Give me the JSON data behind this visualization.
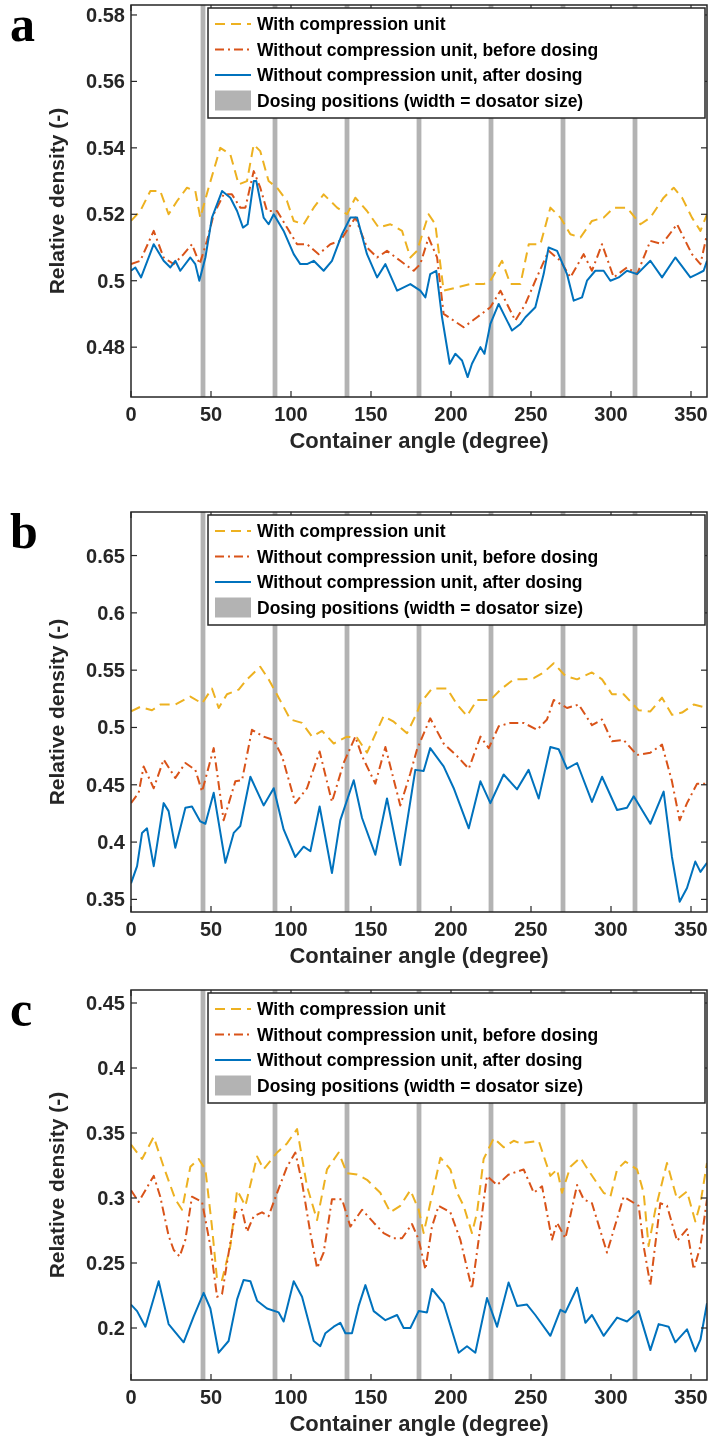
{
  "chart_data": [
    {
      "type": "line",
      "title": "a",
      "xlabel": "Container angle (degree)",
      "ylabel": "Relative density (-)",
      "xlim": [
        0,
        360
      ],
      "ylim": [
        0.465,
        0.583
      ],
      "xticks": [
        0,
        50,
        100,
        150,
        200,
        250,
        300,
        350
      ],
      "yticks": [
        0.48,
        0.5,
        0.52,
        0.54,
        0.56,
        0.58
      ],
      "legend": "top right",
      "grid": false,
      "bands": [
        {
          "axis": "x",
          "from": 43.5,
          "to": 46.5,
          "label": "Dosing positions (width = dosator size)",
          "color": "#b3b3b3"
        },
        {
          "axis": "x",
          "from": 88.5,
          "to": 91.5,
          "color": "#b3b3b3"
        },
        {
          "axis": "x",
          "from": 133.5,
          "to": 136.5,
          "color": "#b3b3b3"
        },
        {
          "axis": "x",
          "from": 178.5,
          "to": 181.5,
          "color": "#b3b3b3"
        },
        {
          "axis": "x",
          "from": 223.5,
          "to": 226.5,
          "color": "#b3b3b3"
        },
        {
          "axis": "x",
          "from": 268.5,
          "to": 271.5,
          "color": "#b3b3b3"
        },
        {
          "axis": "x",
          "from": 313.5,
          "to": 316.5,
          "color": "#b3b3b3"
        }
      ],
      "series": [
        {
          "name": "With compression unit",
          "color": "#edb120",
          "line_style": "dashed",
          "x": [
            0,
            5.8,
            12.1,
            18.3,
            23.5,
            28.8,
            35,
            40.2,
            43.3,
            48.5,
            55.8,
            62.1,
            67.3,
            72.5,
            76.7,
            80.8,
            86,
            91.3,
            97.5,
            101.7,
            107.9,
            114.2,
            120.4,
            128.8,
            135,
            140.2,
            147.5,
            154.8,
            162.1,
            169.4,
            174.6,
            178.8,
            186,
            190.2,
            195.4,
            203.8,
            212.1,
            220.4,
            224.6,
            231.9,
            237.1,
            243.4,
            248.6,
            255.9,
            262.1,
            268.4,
            274.6,
            280.9,
            288.1,
            295.4,
            301.7,
            310,
            318.4,
            324.6,
            332.9,
            339.2,
            344.4,
            350.6,
            355.9,
            360
          ],
          "values": [
            0.518,
            0.521,
            0.527,
            0.527,
            0.52,
            0.524,
            0.528,
            0.527,
            0.519,
            0.528,
            0.54,
            0.538,
            0.529,
            0.53,
            0.541,
            0.539,
            0.53,
            0.528,
            0.524,
            0.518,
            0.517,
            0.522,
            0.526,
            0.522,
            0.52,
            0.525,
            0.521,
            0.516,
            0.517,
            0.515,
            0.507,
            0.509,
            0.52,
            0.517,
            0.497,
            0.498,
            0.499,
            0.499,
            0.5,
            0.506,
            0.499,
            0.499,
            0.511,
            0.511,
            0.522,
            0.519,
            0.514,
            0.513,
            0.518,
            0.519,
            0.522,
            0.522,
            0.517,
            0.519,
            0.525,
            0.528,
            0.525,
            0.519,
            0.515,
            0.52
          ]
        },
        {
          "name": "Without compression unit, before dosing",
          "color": "#d95319",
          "line_style": "dashdot",
          "x": [
            0,
            5.8,
            14.2,
            20.4,
            26.7,
            32.9,
            38.1,
            42.9,
            47.5,
            51.7,
            57.9,
            63.1,
            68.3,
            71.5,
            76.7,
            80.8,
            85,
            91.3,
            97.5,
            103.8,
            110,
            117.3,
            124.6,
            130.8,
            140.2,
            147.5,
            153.8,
            160,
            168.3,
            176.7,
            180.8,
            186,
            191.3,
            195.4,
            201.7,
            207.9,
            216.3,
            224.6,
            230.9,
            235,
            240.2,
            246.5,
            252.7,
            261,
            268.4,
            274.6,
            282.9,
            288.1,
            294.4,
            301.7,
            310,
            316.3,
            324.6,
            331.9,
            341.3,
            350.6,
            355.9,
            360
          ],
          "values": [
            0.505,
            0.506,
            0.515,
            0.507,
            0.505,
            0.508,
            0.511,
            0.505,
            0.512,
            0.52,
            0.526,
            0.526,
            0.522,
            0.522,
            0.533,
            0.528,
            0.521,
            0.521,
            0.516,
            0.511,
            0.511,
            0.508,
            0.511,
            0.512,
            0.519,
            0.51,
            0.507,
            0.509,
            0.506,
            0.503,
            0.505,
            0.513,
            0.507,
            0.49,
            0.488,
            0.486,
            0.489,
            0.492,
            0.497,
            0.493,
            0.488,
            0.493,
            0.5,
            0.509,
            0.506,
            0.501,
            0.508,
            0.503,
            0.511,
            0.501,
            0.504,
            0.502,
            0.512,
            0.511,
            0.517,
            0.508,
            0.505,
            0.514
          ]
        },
        {
          "name": "Without compression unit, after dosing",
          "color": "#0072bd",
          "line_style": "solid",
          "x": [
            0,
            2.7,
            6.3,
            14.2,
            20.4,
            24.6,
            27.7,
            30.8,
            37.1,
            40.2,
            42.7,
            46.5,
            50.6,
            56.9,
            62.1,
            66.3,
            70,
            72.9,
            76.7,
            78.3,
            82.9,
            86,
            89.2,
            95.4,
            101.7,
            105.8,
            110,
            114.2,
            120.4,
            125.6,
            131.9,
            137.1,
            141.3,
            147.5,
            153.8,
            159,
            166.3,
            174.6,
            180.8,
            184,
            187,
            190.8,
            194.4,
            199.2,
            202.7,
            206.9,
            210.4,
            213.1,
            218.4,
            220.9,
            224.6,
            229.8,
            235,
            238.1,
            243.4,
            246.5,
            252.7,
            257.9,
            261,
            266.3,
            272.5,
            276.7,
            281.9,
            285,
            290.2,
            295.4,
            299.6,
            304.8,
            310,
            316.3,
            324.6,
            331.9,
            340.2,
            349.6,
            353.8,
            357.9,
            360
          ],
          "values": [
            0.503,
            0.504,
            0.501,
            0.511,
            0.506,
            0.504,
            0.506,
            0.503,
            0.507,
            0.505,
            0.5,
            0.507,
            0.519,
            0.527,
            0.525,
            0.521,
            0.516,
            0.517,
            0.53,
            0.53,
            0.519,
            0.517,
            0.52,
            0.515,
            0.508,
            0.505,
            0.505,
            0.506,
            0.503,
            0.506,
            0.514,
            0.519,
            0.519,
            0.508,
            0.501,
            0.505,
            0.497,
            0.499,
            0.497,
            0.495,
            0.502,
            0.503,
            0.489,
            0.475,
            0.478,
            0.476,
            0.471,
            0.475,
            0.48,
            0.478,
            0.487,
            0.493,
            0.488,
            0.485,
            0.487,
            0.489,
            0.492,
            0.502,
            0.51,
            0.509,
            0.502,
            0.494,
            0.495,
            0.5,
            0.503,
            0.503,
            0.5,
            0.501,
            0.503,
            0.502,
            0.506,
            0.501,
            0.507,
            0.501,
            0.502,
            0.503,
            0.506
          ]
        }
      ]
    },
    {
      "type": "line",
      "title": "b",
      "xlabel": "Container angle (degree)",
      "ylabel": "Relative density (-)",
      "xlim": [
        0,
        360
      ],
      "ylim": [
        0.339,
        0.688
      ],
      "xticks": [
        0,
        50,
        100,
        150,
        200,
        250,
        300,
        350
      ],
      "yticks": [
        0.35,
        0.4,
        0.45,
        0.5,
        0.55,
        0.6,
        0.65
      ],
      "legend": "top right",
      "grid": false,
      "bands": [
        {
          "axis": "x",
          "from": 43.5,
          "to": 46.5,
          "label": "Dosing positions (width = dosator size)",
          "color": "#b3b3b3"
        },
        {
          "axis": "x",
          "from": 88.5,
          "to": 91.5,
          "color": "#b3b3b3"
        },
        {
          "axis": "x",
          "from": 133.5,
          "to": 136.5,
          "color": "#b3b3b3"
        },
        {
          "axis": "x",
          "from": 178.5,
          "to": 181.5,
          "color": "#b3b3b3"
        },
        {
          "axis": "x",
          "from": 223.5,
          "to": 226.5,
          "color": "#b3b3b3"
        },
        {
          "axis": "x",
          "from": 268.5,
          "to": 271.5,
          "color": "#b3b3b3"
        },
        {
          "axis": "x",
          "from": 313.5,
          "to": 316.5,
          "color": "#b3b3b3"
        }
      ],
      "series": [
        {
          "name": "With compression unit",
          "color": "#edb120",
          "line_style": "dashed",
          "x": [
            0,
            5.8,
            13.1,
            18.3,
            27.7,
            37.1,
            44.4,
            50.6,
            54.8,
            60,
            67.3,
            72.5,
            80.8,
            86,
            92.3,
            99.6,
            106.9,
            113.1,
            119.4,
            126.7,
            135,
            141.3,
            147.5,
            157.9,
            164.2,
            172.5,
            178.8,
            180.8,
            188.1,
            197.5,
            203.8,
            210,
            216.3,
            224.6,
            230.9,
            239.2,
            245.4,
            251.7,
            257.9,
            264.2,
            271.5,
            278.8,
            288.1,
            294.4,
            300.6,
            307.9,
            317.3,
            324.6,
            331.9,
            338.1,
            344.4,
            351.7,
            360
          ],
          "values": [
            0.514,
            0.518,
            0.515,
            0.52,
            0.52,
            0.527,
            0.521,
            0.534,
            0.517,
            0.529,
            0.533,
            0.542,
            0.553,
            0.542,
            0.526,
            0.507,
            0.504,
            0.492,
            0.497,
            0.486,
            0.492,
            0.491,
            0.478,
            0.51,
            0.505,
            0.495,
            0.513,
            0.521,
            0.534,
            0.534,
            0.52,
            0.51,
            0.524,
            0.524,
            0.533,
            0.542,
            0.542,
            0.543,
            0.548,
            0.556,
            0.545,
            0.542,
            0.548,
            0.542,
            0.529,
            0.529,
            0.515,
            0.514,
            0.526,
            0.511,
            0.513,
            0.52,
            0.517
          ]
        },
        {
          "name": "Without compression unit, before dosing",
          "color": "#d95319",
          "line_style": "dashdot",
          "x": [
            0,
            4.8,
            7.9,
            14.2,
            20.4,
            27.7,
            34,
            40.2,
            44.4,
            51.7,
            57.9,
            65.2,
            69.4,
            75.6,
            82.9,
            89.2,
            94.4,
            102.7,
            110,
            117.9,
            125.6,
            132.9,
            140.2,
            144.4,
            152.7,
            159,
            168.3,
            174.6,
            178.8,
            187,
            195.4,
            203.8,
            211.1,
            218.4,
            223.6,
            229.8,
            237.1,
            245.4,
            253.8,
            260,
            264.2,
            272.5,
            279.8,
            288.1,
            294.4,
            300.6,
            307.9,
            316.3,
            324.6,
            331.9,
            338.1,
            342.9,
            347.5,
            353.8,
            360
          ],
          "values": [
            0.434,
            0.443,
            0.466,
            0.447,
            0.472,
            0.456,
            0.469,
            0.463,
            0.444,
            0.482,
            0.419,
            0.453,
            0.454,
            0.498,
            0.492,
            0.489,
            0.475,
            0.434,
            0.447,
            0.479,
            0.435,
            0.469,
            0.492,
            0.475,
            0.451,
            0.483,
            0.432,
            0.46,
            0.481,
            0.508,
            0.486,
            0.475,
            0.464,
            0.492,
            0.482,
            0.501,
            0.504,
            0.504,
            0.498,
            0.507,
            0.524,
            0.517,
            0.52,
            0.502,
            0.507,
            0.488,
            0.489,
            0.476,
            0.478,
            0.485,
            0.453,
            0.419,
            0.434,
            0.451,
            0.451
          ]
        },
        {
          "name": "Without compression unit, after dosing",
          "color": "#0072bd",
          "line_style": "solid",
          "x": [
            0,
            3.8,
            6.9,
            10,
            14.2,
            20.4,
            23.5,
            27.7,
            30.8,
            34,
            38.1,
            43.3,
            46.5,
            51.7,
            59,
            64.2,
            68.3,
            74.6,
            82.9,
            89.2,
            95.4,
            102.7,
            107.9,
            112.1,
            117.9,
            125.6,
            130.8,
            139.2,
            144.4,
            152.7,
            160,
            168.3,
            177.7,
            182.9,
            187,
            195.4,
            201.7,
            211.1,
            218.4,
            224.6,
            232.9,
            241.3,
            248.5,
            254.8,
            262.1,
            267.3,
            272.5,
            278.8,
            288.1,
            294.4,
            303.8,
            310,
            314.2,
            324.6,
            332.9,
            338.1,
            342.9,
            347.5,
            352.7,
            355.9,
            360
          ],
          "values": [
            0.364,
            0.379,
            0.408,
            0.412,
            0.379,
            0.434,
            0.427,
            0.395,
            0.412,
            0.43,
            0.431,
            0.418,
            0.416,
            0.443,
            0.382,
            0.408,
            0.414,
            0.457,
            0.432,
            0.447,
            0.411,
            0.387,
            0.396,
            0.392,
            0.431,
            0.373,
            0.419,
            0.454,
            0.421,
            0.389,
            0.438,
            0.38,
            0.463,
            0.462,
            0.482,
            0.466,
            0.447,
            0.412,
            0.453,
            0.434,
            0.459,
            0.446,
            0.463,
            0.438,
            0.483,
            0.481,
            0.464,
            0.469,
            0.435,
            0.457,
            0.428,
            0.43,
            0.44,
            0.416,
            0.444,
            0.387,
            0.348,
            0.36,
            0.383,
            0.374,
            0.382
          ]
        }
      ]
    },
    {
      "type": "line",
      "title": "c",
      "xlabel": "Container angle (degree)",
      "ylabel": "Relative density (-)",
      "xlim": [
        0,
        360
      ],
      "ylim": [
        0.16,
        0.46
      ],
      "xticks": [
        0,
        50,
        100,
        150,
        200,
        250,
        300,
        350
      ],
      "yticks": [
        0.2,
        0.25,
        0.3,
        0.35,
        0.4,
        0.45
      ],
      "legend": "top right",
      "grid": false,
      "bands": [
        {
          "axis": "x",
          "from": 43.5,
          "to": 46.5,
          "label": "Dosing positions (width = dosator size)",
          "color": "#b3b3b3"
        },
        {
          "axis": "x",
          "from": 88.5,
          "to": 91.5,
          "color": "#b3b3b3"
        },
        {
          "axis": "x",
          "from": 133.5,
          "to": 136.5,
          "color": "#b3b3b3"
        },
        {
          "axis": "x",
          "from": 178.5,
          "to": 181.5,
          "color": "#b3b3b3"
        },
        {
          "axis": "x",
          "from": 223.5,
          "to": 226.5,
          "color": "#b3b3b3"
        },
        {
          "axis": "x",
          "from": 268.5,
          "to": 271.5,
          "color": "#b3b3b3"
        },
        {
          "axis": "x",
          "from": 313.5,
          "to": 316.5,
          "color": "#b3b3b3"
        }
      ],
      "series": [
        {
          "name": "With compression unit",
          "color": "#edb120",
          "line_style": "dashed",
          "x": [
            0,
            6.9,
            14.2,
            20.4,
            27.7,
            31.9,
            37.1,
            42.3,
            46.5,
            50.6,
            53.8,
            56.9,
            62.1,
            66.3,
            71.5,
            78.8,
            82.9,
            91.3,
            97.5,
            103.8,
            110,
            116.3,
            122.5,
            129.8,
            135,
            141.3,
            147.5,
            155.8,
            162.1,
            168.3,
            174.6,
            179.8,
            182.9,
            193.4,
            199.6,
            203.8,
            207.9,
            213.1,
            216.3,
            220.4,
            226.7,
            232.9,
            239.2,
            243.4,
            254.8,
            262.1,
            266.3,
            269.4,
            274.6,
            280.9,
            287.1,
            295.4,
            299.6,
            303.8,
            309,
            316.3,
            320.4,
            323.5,
            327.7,
            335,
            341.3,
            347.5,
            352.7,
            355.9,
            360
          ],
          "values": [
            0.341,
            0.33,
            0.347,
            0.324,
            0.299,
            0.291,
            0.324,
            0.33,
            0.322,
            0.278,
            0.237,
            0.237,
            0.263,
            0.306,
            0.294,
            0.332,
            0.322,
            0.335,
            0.342,
            0.353,
            0.309,
            0.283,
            0.322,
            0.335,
            0.319,
            0.318,
            0.314,
            0.304,
            0.289,
            0.294,
            0.306,
            0.291,
            0.273,
            0.331,
            0.322,
            0.304,
            0.294,
            0.273,
            0.289,
            0.33,
            0.346,
            0.339,
            0.344,
            0.342,
            0.344,
            0.317,
            0.322,
            0.304,
            0.324,
            0.331,
            0.319,
            0.304,
            0.301,
            0.322,
            0.328,
            0.322,
            0.304,
            0.263,
            0.291,
            0.327,
            0.299,
            0.305,
            0.282,
            0.296,
            0.327
          ]
        },
        {
          "name": "Without compression unit, before dosing",
          "color": "#d95319",
          "line_style": "dashdot",
          "x": [
            0,
            4.8,
            14.2,
            18.3,
            23.5,
            26.7,
            30.4,
            34,
            38.1,
            44.4,
            49.6,
            53.8,
            56.9,
            60,
            65.2,
            69.4,
            72.5,
            76.7,
            81.9,
            86,
            91.3,
            97.5,
            102.7,
            106.9,
            112.1,
            116.3,
            120.4,
            125.6,
            131.9,
            137.1,
            144.4,
            151.7,
            157.9,
            164.2,
            169.4,
            175.6,
            179.8,
            184,
            188.1,
            192.3,
            199.6,
            205.8,
            213.1,
            217.3,
            222.5,
            228.8,
            236,
            245.4,
            251.7,
            256.9,
            263.1,
            266.3,
            271.5,
            278.8,
            282.9,
            288.1,
            297.5,
            307.9,
            317.3,
            320.4,
            324.6,
            330.8,
            335,
            341.3,
            347.5,
            351.7,
            355.9,
            360
          ],
          "values": [
            0.306,
            0.297,
            0.317,
            0.301,
            0.271,
            0.26,
            0.255,
            0.268,
            0.301,
            0.297,
            0.263,
            0.224,
            0.226,
            0.25,
            0.289,
            0.291,
            0.274,
            0.286,
            0.289,
            0.286,
            0.304,
            0.324,
            0.335,
            0.312,
            0.273,
            0.246,
            0.258,
            0.299,
            0.299,
            0.278,
            0.291,
            0.281,
            0.273,
            0.269,
            0.269,
            0.28,
            0.268,
            0.245,
            0.278,
            0.294,
            0.289,
            0.268,
            0.23,
            0.268,
            0.317,
            0.31,
            0.318,
            0.322,
            0.304,
            0.309,
            0.268,
            0.281,
            0.269,
            0.31,
            0.299,
            0.296,
            0.258,
            0.301,
            0.294,
            0.263,
            0.233,
            0.296,
            0.294,
            0.267,
            0.276,
            0.245,
            0.263,
            0.299
          ]
        },
        {
          "name": "Without compression unit, after dosing",
          "color": "#0072bd",
          "line_style": "solid",
          "x": [
            0,
            3.8,
            9,
            17.3,
            23.5,
            32.9,
            39.2,
            45.4,
            49.6,
            54.8,
            61,
            66.3,
            70.4,
            74.6,
            78.8,
            85,
            92.3,
            95.4,
            101.7,
            106.9,
            114.2,
            118.3,
            121.5,
            126.7,
            130.8,
            134,
            138.1,
            142.3,
            146.5,
            151.7,
            159,
            166.3,
            170.4,
            174.6,
            179.8,
            185,
            188.1,
            195.4,
            204.8,
            210,
            215.2,
            222.5,
            228.8,
            236,
            241.3,
            247.5,
            252.7,
            262.1,
            268.4,
            271.5,
            278.8,
            284,
            288.1,
            295.4,
            303.8,
            310,
            317.3,
            324.6,
            329.8,
            336,
            340.2,
            347.5,
            352.7,
            355.9,
            360
          ],
          "values": [
            0.218,
            0.213,
            0.201,
            0.236,
            0.203,
            0.189,
            0.209,
            0.227,
            0.215,
            0.181,
            0.19,
            0.222,
            0.237,
            0.236,
            0.221,
            0.215,
            0.212,
            0.205,
            0.236,
            0.224,
            0.19,
            0.186,
            0.196,
            0.201,
            0.204,
            0.196,
            0.196,
            0.217,
            0.233,
            0.213,
            0.206,
            0.21,
            0.2,
            0.2,
            0.213,
            0.212,
            0.23,
            0.219,
            0.181,
            0.186,
            0.181,
            0.223,
            0.201,
            0.235,
            0.217,
            0.218,
            0.21,
            0.194,
            0.214,
            0.212,
            0.231,
            0.204,
            0.21,
            0.194,
            0.208,
            0.205,
            0.213,
            0.183,
            0.203,
            0.201,
            0.189,
            0.199,
            0.182,
            0.191,
            0.219
          ]
        }
      ]
    }
  ]
}
